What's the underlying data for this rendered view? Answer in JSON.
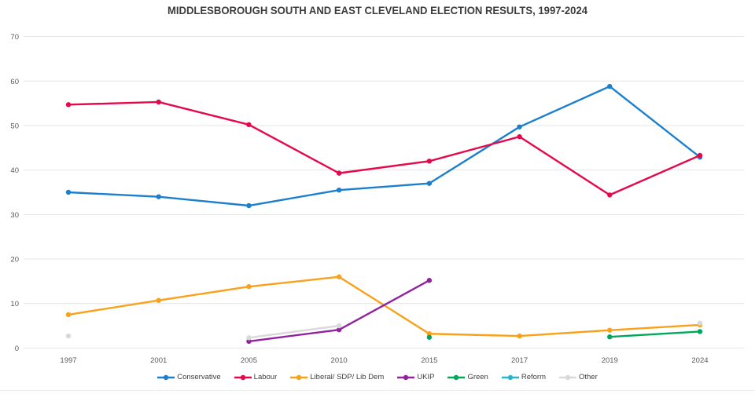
{
  "chart": {
    "title": "MIDDLESBOROUGH SOUTH AND EAST CLEVELAND ELECTION RESULTS, 1997-2024"
  },
  "chart_data": {
    "type": "line",
    "title": "MIDDLESBOROUGH SOUTH AND EAST CLEVELAND ELECTION RESULTS, 1997-2024",
    "categories": [
      "1997",
      "2001",
      "2005",
      "2010",
      "2015",
      "2017",
      "2019",
      "2024"
    ],
    "series": [
      {
        "name": "Conservative",
        "color": "#1b7fce",
        "values": [
          35,
          34,
          32,
          35.5,
          37,
          49.7,
          58.8,
          42.9
        ]
      },
      {
        "name": "Labour",
        "color": "#e4094b",
        "values": [
          54.7,
          55.3,
          50.2,
          39.3,
          42,
          47.5,
          34.4,
          43.3
        ]
      },
      {
        "name": "Liberal/ SDP/ Lib Dem",
        "color": "#f9a11b",
        "values": [
          7.5,
          10.7,
          13.8,
          16,
          3.2,
          2.7,
          4,
          5.2
        ]
      },
      {
        "name": "UKIP",
        "color": "#92239e",
        "values": [
          null,
          null,
          1.5,
          4.1,
          15.2,
          null,
          null,
          null
        ]
      },
      {
        "name": "Green",
        "color": "#00a75d",
        "values": [
          null,
          null,
          null,
          null,
          2.4,
          null,
          2.5,
          3.7
        ]
      },
      {
        "name": "Reform",
        "color": "#29b5ce",
        "values": [
          null,
          null,
          null,
          null,
          null,
          null,
          null,
          null
        ]
      },
      {
        "name": "Other",
        "color": "#d9d9d9",
        "values": [
          2.7,
          null,
          2.3,
          5,
          null,
          null,
          null,
          5.6
        ]
      }
    ],
    "xlabel": "",
    "ylabel": "",
    "ylim": [
      0,
      70
    ],
    "yticks": [
      0,
      10,
      20,
      30,
      40,
      50,
      60,
      70
    ],
    "grid": "horizontal",
    "legend_position": "bottom"
  }
}
